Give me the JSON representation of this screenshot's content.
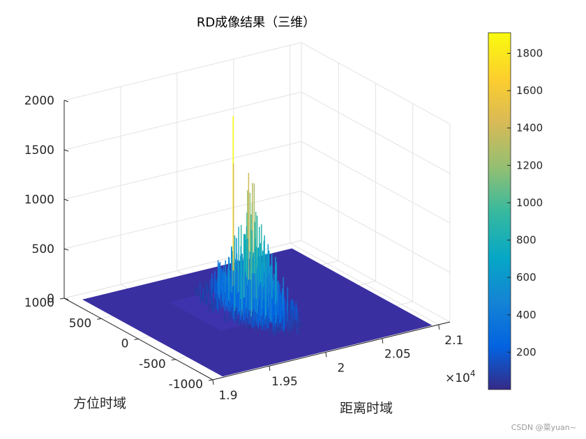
{
  "chart_data": {
    "type": "surface",
    "title": "RD成像结果（三维）",
    "xlabel": "距离时域",
    "ylabel": "方位时域",
    "zlabel": "",
    "x_tick_labels": [
      "1.9",
      "1.95",
      "2",
      "2.05",
      "2.1"
    ],
    "x_exponent_label": "×10",
    "x_exponent_power": "4",
    "y_tick_labels": [
      "-1000",
      "-500",
      "0",
      "500",
      "1000"
    ],
    "z_tick_labels": [
      "0",
      "500",
      "1000",
      "1500",
      "2000"
    ],
    "xlim": [
      19000,
      21100
    ],
    "ylim": [
      -1000,
      1000
    ],
    "zlim": [
      0,
      2000
    ],
    "grid": true,
    "colormap": "parula",
    "colorbar": {
      "range": [
        0,
        1910
      ],
      "tick_labels": [
        "200",
        "400",
        "600",
        "800",
        "1000",
        "1200",
        "1400",
        "1600",
        "1800"
      ]
    },
    "peak": {
      "x": 20000,
      "y": 0,
      "z": 1900
    },
    "note_floor": "flat plateau near 0 across range and azimuth with a single concentrated peak cluster centered near range 2e4, azimuth 0"
  },
  "watermark": "CSDN @菜yuan~"
}
